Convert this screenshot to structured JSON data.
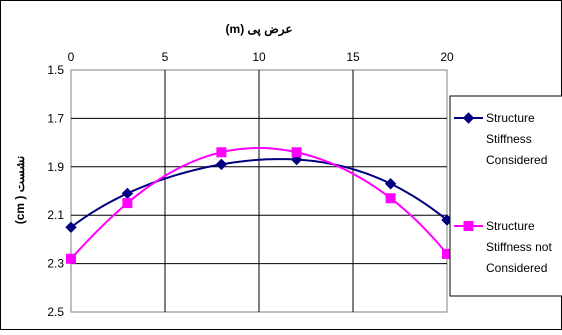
{
  "chart_data": {
    "type": "line",
    "title": "",
    "xlabel": "عرض پی (m)",
    "ylabel": "نشست ( cm)",
    "xlim": [
      0,
      20
    ],
    "ylim": [
      1.5,
      2.5
    ],
    "y_reversed": true,
    "x_axis_position": "top",
    "x_ticks": [
      0,
      5,
      10,
      15,
      20
    ],
    "y_ticks": [
      1.5,
      1.7,
      1.9,
      2.1,
      2.3,
      2.5
    ],
    "grid": "vertical and horizontal",
    "legend_position": "right",
    "series": [
      {
        "name": "Structure Stiffness Considered",
        "name_lines": [
          "Structure",
          "Stiffness",
          "Considered"
        ],
        "color": "#000080",
        "marker": "diamond",
        "x": [
          0,
          3,
          8,
          12,
          17,
          20
        ],
        "y": [
          2.15,
          2.01,
          1.89,
          1.87,
          1.97,
          2.12
        ]
      },
      {
        "name": "Structure Stiffness not Considered",
        "name_lines": [
          "Structure",
          "Stiffness not",
          "Considered"
        ],
        "color": "#FF00FF",
        "marker": "square",
        "x": [
          0,
          3,
          8,
          12,
          17,
          20
        ],
        "y": [
          2.28,
          2.05,
          1.84,
          1.84,
          2.03,
          2.26
        ]
      }
    ]
  }
}
